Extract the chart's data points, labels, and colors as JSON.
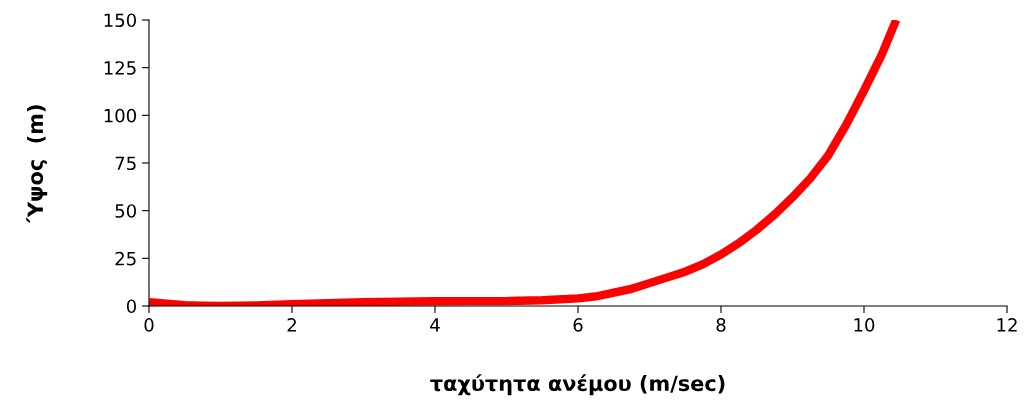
{
  "chart_data": {
    "type": "line",
    "xlabel": "ταχύτητα ανέμου (m/sec)",
    "ylabel": "Ύψος  (m)",
    "x": [
      0,
      0.25,
      0.5,
      0.75,
      1,
      1.5,
      2,
      2.5,
      3,
      3.5,
      4,
      4.5,
      5,
      5.5,
      6,
      6.25,
      6.5,
      6.75,
      7,
      7.25,
      7.5,
      7.75,
      8,
      8.25,
      8.5,
      8.75,
      9,
      9.25,
      9.5,
      9.75,
      10,
      10.25,
      10.45
    ],
    "series": [
      {
        "color": "#ff0000",
        "values": [
          2,
          1.2,
          0.5,
          0.2,
          0,
          0.3,
          1,
          1.5,
          2,
          2.3,
          2.5,
          2.6,
          2.6,
          3,
          4,
          5,
          7,
          9,
          12,
          15,
          18,
          22,
          27,
          33,
          40,
          48,
          57,
          67,
          79,
          95,
          113,
          132,
          150
        ]
      }
    ],
    "xlim": [
      0,
      12
    ],
    "ylim": [
      0,
      150
    ],
    "xticks": [
      0,
      2,
      4,
      6,
      8,
      10,
      12
    ],
    "yticks": [
      0,
      25,
      50,
      75,
      100,
      125,
      150
    ],
    "grid": false,
    "legend": false,
    "marker": "none",
    "line_style": "solid"
  }
}
